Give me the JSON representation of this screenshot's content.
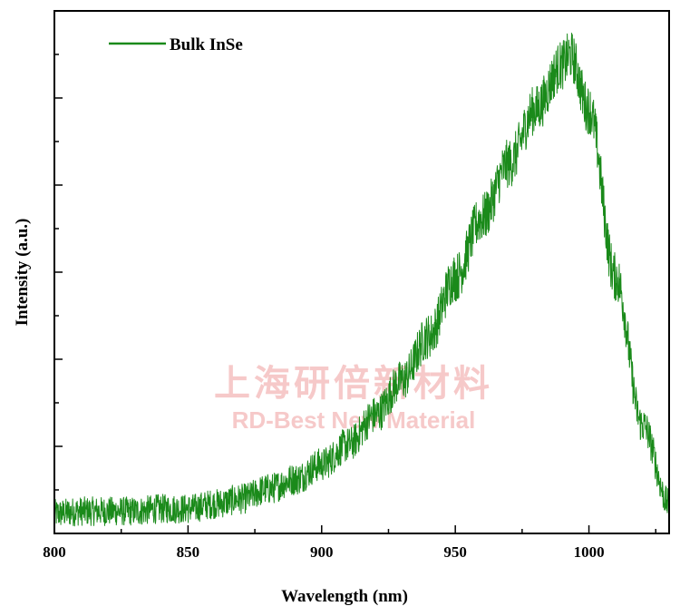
{
  "chart_data": {
    "type": "line",
    "xlabel": "Wavelength (nm)",
    "ylabel": "Intensity (a.u.)",
    "xlim": [
      800,
      1030
    ],
    "ylim": [
      0,
      1.06
    ],
    "x_ticks": [
      800,
      850,
      900,
      950,
      1000
    ],
    "y_tick_labels": "none",
    "grid": false,
    "legend": "top-left",
    "series": [
      {
        "name": "Bulk InSe",
        "color": "#1a8a1a",
        "noise_band": 0.05,
        "x": [
          800,
          810,
          820,
          830,
          840,
          850,
          860,
          870,
          880,
          890,
          900,
          910,
          920,
          930,
          940,
          950,
          960,
          970,
          980,
          990,
          993,
          1000,
          1010,
          1020,
          1030
        ],
        "y": [
          0.04,
          0.045,
          0.045,
          0.045,
          0.05,
          0.05,
          0.06,
          0.07,
          0.09,
          0.11,
          0.14,
          0.18,
          0.24,
          0.31,
          0.4,
          0.52,
          0.64,
          0.75,
          0.86,
          0.95,
          0.97,
          0.86,
          0.52,
          0.22,
          0.06
        ]
      }
    ]
  },
  "watermark": {
    "line1": "上海研倍新材料",
    "line2": "RD-Best New Material"
  }
}
